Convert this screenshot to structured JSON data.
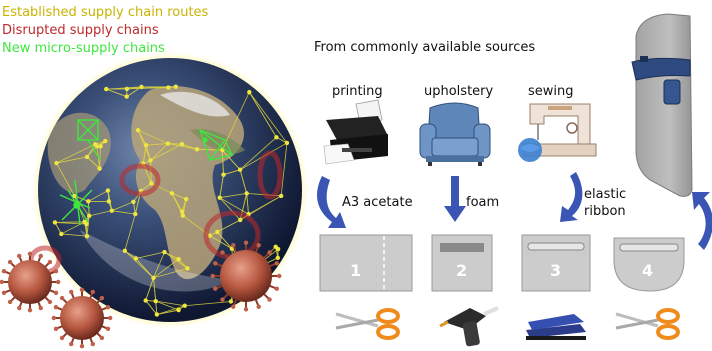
{
  "legend": {
    "established": {
      "label": "Established supply chain routes",
      "color": "#c8b400"
    },
    "disrupted": {
      "label": "Disrupted supply chains",
      "color": "#c0282a"
    },
    "micro": {
      "label": "New micro-supply chains",
      "color": "#3ee63e"
    }
  },
  "heading": "From commonly available sources",
  "sources": [
    {
      "label": "printing",
      "icon": "printer-icon"
    },
    {
      "label": "upholstery",
      "icon": "armchair-icon"
    },
    {
      "label": "sewing",
      "icon": "sewing-machine-icon"
    }
  ],
  "materials": {
    "acetate": "A3 acetate",
    "foam": "foam",
    "elastic_line1": "elastic",
    "elastic_line2": "ribbon"
  },
  "steps": [
    {
      "number": "1",
      "tool": "scissors-icon"
    },
    {
      "number": "2",
      "tool": "glue-gun-icon"
    },
    {
      "number": "3",
      "tool": "stapler-icon"
    },
    {
      "number": "4",
      "tool": "scissors-icon"
    }
  ],
  "colors": {
    "arrow": "#3a55b4",
    "panel": "#c8c8c8",
    "globe_ocean": "#1d2a4a"
  }
}
